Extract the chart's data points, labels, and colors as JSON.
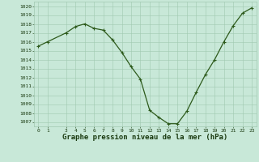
{
  "x": [
    0,
    1,
    3,
    4,
    5,
    6,
    7,
    8,
    9,
    10,
    11,
    12,
    13,
    14,
    15,
    16,
    17,
    18,
    19,
    20,
    21,
    22,
    23
  ],
  "y": [
    1015.5,
    1016.0,
    1017.0,
    1017.7,
    1018.0,
    1017.5,
    1017.3,
    1016.2,
    1014.8,
    1013.2,
    1011.8,
    1008.3,
    1007.5,
    1006.8,
    1006.8,
    1008.2,
    1010.3,
    1012.3,
    1014.0,
    1016.0,
    1017.8,
    1019.2,
    1019.8
  ],
  "xlim": [
    -0.5,
    23.5
  ],
  "ylim": [
    1006.5,
    1020.5
  ],
  "xticks": [
    0,
    1,
    3,
    4,
    5,
    6,
    7,
    8,
    9,
    10,
    11,
    12,
    13,
    14,
    15,
    16,
    17,
    18,
    19,
    20,
    21,
    22,
    23
  ],
  "yticks": [
    1007,
    1008,
    1009,
    1010,
    1011,
    1012,
    1013,
    1014,
    1015,
    1016,
    1017,
    1018,
    1019,
    1020
  ],
  "line_color": "#2d5a1b",
  "marker": "+",
  "bg_color": "#c8e8d8",
  "grid_color": "#a0c8b0",
  "xlabel": "Graphe pression niveau de la mer (hPa)",
  "xlabel_color": "#1a3a10",
  "tick_color": "#1a3a10",
  "tick_fontsize": 4.5,
  "label_fontsize": 6.5,
  "linewidth": 0.9,
  "markersize": 2.5,
  "markeredgewidth": 0.8
}
